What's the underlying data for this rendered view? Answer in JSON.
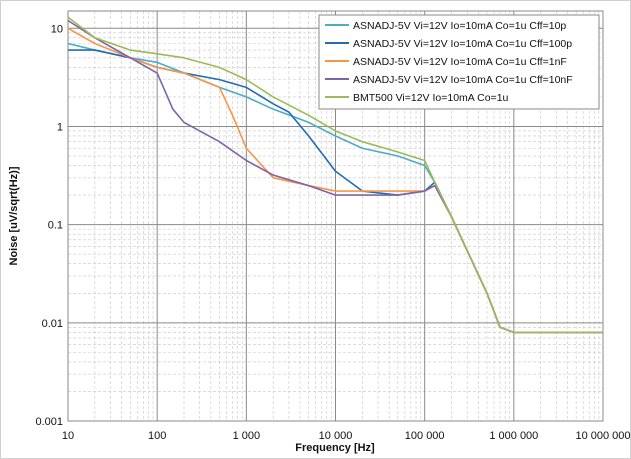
{
  "chart_data": {
    "type": "line",
    "title": "",
    "xlabel": "Frequency [Hz]",
    "ylabel": "Noise [uV/sqrt(Hz)]",
    "xscale": "log",
    "yscale": "log",
    "xlim": [
      10,
      10000000
    ],
    "ylim": [
      0.001,
      15
    ],
    "x_ticks": [
      {
        "value": 10,
        "label": "10"
      },
      {
        "value": 100,
        "label": "100"
      },
      {
        "value": 1000,
        "label": "1 000"
      },
      {
        "value": 10000,
        "label": "10 000"
      },
      {
        "value": 100000,
        "label": "100 000"
      },
      {
        "value": 1000000,
        "label": "1 000 000"
      },
      {
        "value": 10000000,
        "label": "10 000 000"
      }
    ],
    "y_ticks": [
      {
        "value": 10,
        "label": "10"
      },
      {
        "value": 1,
        "label": "1"
      },
      {
        "value": 0.1,
        "label": "0.1"
      },
      {
        "value": 0.01,
        "label": "0.01"
      },
      {
        "value": 0.001,
        "label": "0.001"
      }
    ],
    "grid": true,
    "legend_position": "top-right",
    "series": [
      {
        "name": "ASNADJ-5V Vi=12V Io=10mA Co=1u Cff=10p",
        "color": "#4bacc6",
        "x": [
          10,
          20,
          50,
          100,
          200,
          500,
          1000,
          2000,
          5000,
          10000,
          20000,
          50000,
          100000,
          130000,
          200000,
          500000,
          700000,
          1000000,
          2000000,
          5000000,
          10000000
        ],
        "y": [
          7,
          6,
          5,
          4.5,
          3.5,
          2.5,
          2,
          1.5,
          1.1,
          0.8,
          0.6,
          0.5,
          0.4,
          0.27,
          0.12,
          0.02,
          0.009,
          0.008,
          0.008,
          0.008,
          0.008
        ]
      },
      {
        "name": "ASNADJ-5V Vi=12V Io=10mA Co=1u Cff=100p",
        "color": "#1f6eb5",
        "x": [
          10,
          20,
          50,
          100,
          200,
          500,
          1000,
          2000,
          3000,
          5000,
          10000,
          20000,
          50000,
          100000,
          130000,
          200000,
          500000,
          700000,
          1000000,
          2000000,
          5000000,
          10000000
        ],
        "y": [
          6,
          6,
          5,
          4,
          3.5,
          3,
          2.5,
          1.7,
          1.4,
          0.8,
          0.35,
          0.22,
          0.2,
          0.22,
          0.27,
          0.12,
          0.02,
          0.009,
          0.008,
          0.008,
          0.008,
          0.008
        ]
      },
      {
        "name": "ASNADJ-5V Vi=12V Io=10mA Co=1u Cff=1nF",
        "color": "#f79646",
        "x": [
          10,
          20,
          50,
          100,
          200,
          500,
          700,
          1000,
          2000,
          5000,
          10000,
          20000,
          50000,
          100000,
          130000,
          200000,
          500000,
          700000,
          1000000,
          2000000,
          5000000,
          10000000
        ],
        "y": [
          10,
          7,
          5,
          4,
          3.5,
          2.5,
          1.3,
          0.6,
          0.3,
          0.25,
          0.22,
          0.22,
          0.22,
          0.22,
          0.25,
          0.12,
          0.02,
          0.009,
          0.008,
          0.008,
          0.008,
          0.008
        ]
      },
      {
        "name": "ASNADJ-5V Vi=12V Io=10mA Co=1u Cff=10nF",
        "color": "#7f63a8",
        "x": [
          10,
          20,
          50,
          100,
          150,
          200,
          500,
          1000,
          2000,
          5000,
          10000,
          20000,
          50000,
          100000,
          130000,
          200000,
          500000,
          700000,
          1000000,
          2000000,
          5000000,
          10000000
        ],
        "y": [
          12,
          8,
          5,
          3.5,
          1.5,
          1.1,
          0.7,
          0.45,
          0.32,
          0.25,
          0.2,
          0.2,
          0.2,
          0.22,
          0.25,
          0.12,
          0.02,
          0.009,
          0.008,
          0.008,
          0.008,
          0.008
        ]
      },
      {
        "name": "BMT500 Vi=12V Io=10mA Co=1u",
        "color": "#9bbb59",
        "x": [
          10,
          20,
          50,
          100,
          200,
          500,
          1000,
          2000,
          5000,
          10000,
          20000,
          50000,
          100000,
          130000,
          200000,
          500000,
          700000,
          1000000,
          2000000,
          5000000,
          10000000
        ],
        "y": [
          13,
          8,
          6,
          5.5,
          5,
          4,
          3,
          2,
          1.3,
          0.9,
          0.7,
          0.55,
          0.45,
          0.27,
          0.12,
          0.02,
          0.009,
          0.008,
          0.008,
          0.008,
          0.008
        ]
      }
    ]
  }
}
